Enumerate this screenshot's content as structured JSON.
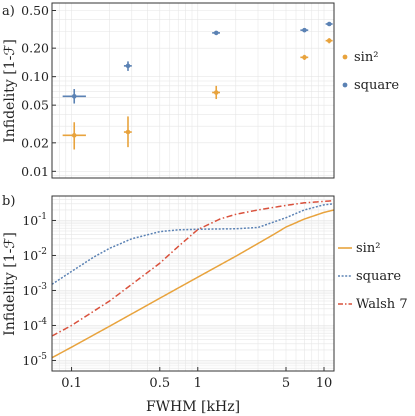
{
  "chart_data": [
    {
      "panel_label": "a)",
      "type": "scatter",
      "ylabel": "Infidelity [1-ℱ]",
      "xscale": "log",
      "yscale": "log",
      "xlim": [
        0.07,
        12
      ],
      "ylim": [
        0.0085,
        0.6
      ],
      "grid": true,
      "legend_position": "right",
      "yticks": [
        {
          "value": 0.01,
          "label": "0.01"
        },
        {
          "value": 0.02,
          "label": "0.02"
        },
        {
          "value": 0.05,
          "label": "0.05"
        },
        {
          "value": 0.1,
          "label": "0.10"
        },
        {
          "value": 0.2,
          "label": "0.20"
        },
        {
          "value": 0.5,
          "label": "0.50"
        }
      ],
      "series": [
        {
          "name": "sin²",
          "color": "#e8a33d",
          "points": [
            {
              "x": 0.105,
              "y": 0.024,
              "xerr": [
                0.085,
                0.13
              ],
              "yerr": [
                0.017,
                0.033
              ]
            },
            {
              "x": 0.28,
              "y": 0.026,
              "xerr": [
                0.26,
                0.3
              ],
              "yerr": [
                0.018,
                0.038
              ]
            },
            {
              "x": 1.4,
              "y": 0.068,
              "xerr": [
                1.3,
                1.5
              ],
              "yerr": [
                0.058,
                0.08
              ]
            },
            {
              "x": 7.0,
              "y": 0.16,
              "xerr": [
                6.5,
                7.5
              ],
              "yerr": [
                0.15,
                0.17
              ]
            },
            {
              "x": 11.0,
              "y": 0.24,
              "xerr": [
                10.3,
                11.7
              ],
              "yerr": [
                0.225,
                0.255
              ]
            }
          ]
        },
        {
          "name": "square",
          "color": "#5b82b4",
          "points": [
            {
              "x": 0.105,
              "y": 0.062,
              "xerr": [
                0.085,
                0.13
              ],
              "yerr": [
                0.052,
                0.074
              ]
            },
            {
              "x": 0.28,
              "y": 0.13,
              "xerr": [
                0.26,
                0.3
              ],
              "yerr": [
                0.115,
                0.145
              ]
            },
            {
              "x": 1.4,
              "y": 0.29,
              "xerr": [
                1.3,
                1.5
              ],
              "yerr": [
                0.28,
                0.3
              ]
            },
            {
              "x": 7.0,
              "y": 0.31,
              "xerr": [
                6.5,
                7.5
              ],
              "yerr": [
                0.3,
                0.32
              ]
            },
            {
              "x": 11.0,
              "y": 0.36,
              "xerr": [
                10.3,
                11.7
              ],
              "yerr": [
                0.35,
                0.37
              ]
            }
          ]
        }
      ]
    },
    {
      "panel_label": "b)",
      "type": "line",
      "xlabel": "FWHM [kHz]",
      "ylabel": "Infidelity [1-ℱ]",
      "xscale": "log",
      "yscale": "log",
      "xlim": [
        0.07,
        12
      ],
      "ylim": [
        5e-06,
        0.5
      ],
      "grid": true,
      "legend_position": "right",
      "xticks": [
        {
          "value": 0.1,
          "label": "0.1"
        },
        {
          "value": 0.5,
          "label": "0.5"
        },
        {
          "value": 1,
          "label": "1"
        },
        {
          "value": 5,
          "label": "5"
        },
        {
          "value": 10,
          "label": "10"
        }
      ],
      "yticks": [
        {
          "value": 1e-05,
          "mantissa": "10",
          "exp": "-5"
        },
        {
          "value": 0.0001,
          "mantissa": "10",
          "exp": "-4"
        },
        {
          "value": 0.001,
          "mantissa": "10",
          "exp": "-3"
        },
        {
          "value": 0.01,
          "mantissa": "10",
          "exp": "-2"
        },
        {
          "value": 0.1,
          "mantissa": "10",
          "exp": "-1"
        }
      ],
      "series": [
        {
          "name": "sin²",
          "color": "#e8a33d",
          "dash": "solid",
          "x": [
            0.07,
            0.1,
            0.2,
            0.5,
            1,
            2,
            3,
            4,
            5,
            7,
            10,
            12
          ],
          "y": [
            1.2e-05,
            2.4e-05,
            9.5e-05,
            0.0006,
            0.0024,
            0.0095,
            0.022,
            0.04,
            0.065,
            0.11,
            0.17,
            0.2
          ]
        },
        {
          "name": "square",
          "color": "#5b82b4",
          "dash": "dotted",
          "x": [
            0.07,
            0.1,
            0.15,
            0.2,
            0.3,
            0.5,
            0.7,
            1,
            2,
            3,
            5,
            7,
            10,
            12
          ],
          "y": [
            0.0015,
            0.0035,
            0.009,
            0.016,
            0.03,
            0.048,
            0.054,
            0.056,
            0.058,
            0.063,
            0.12,
            0.2,
            0.28,
            0.3
          ]
        },
        {
          "name": "Walsh 7",
          "color": "#d9513c",
          "dash": "dashdot",
          "x": [
            0.07,
            0.1,
            0.2,
            0.3,
            0.5,
            0.7,
            1,
            1.5,
            2,
            3,
            5,
            7,
            10,
            12
          ],
          "y": [
            5e-05,
            0.0001,
            0.0005,
            0.0015,
            0.006,
            0.018,
            0.055,
            0.11,
            0.15,
            0.2,
            0.27,
            0.32,
            0.35,
            0.37
          ]
        }
      ]
    }
  ]
}
